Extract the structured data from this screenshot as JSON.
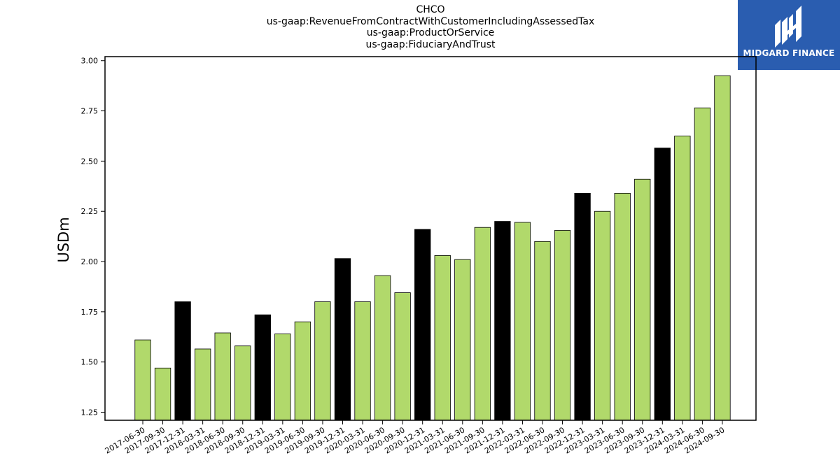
{
  "title_lines": [
    "CHCO",
    "us-gaap:RevenueFromContractWithCustomerIncludingAssessedTax",
    "us-gaap:ProductOrService",
    "us-gaap:FiduciaryAndTrust"
  ],
  "brand": {
    "name": "MIDGARD FINANCE",
    "color": "#2a5db0"
  },
  "colors": {
    "quarter": "#b1d96b",
    "year_end": "#000000"
  },
  "chart_data": {
    "type": "bar",
    "title": "CHCO",
    "subtitle_lines": [
      "us-gaap:RevenueFromContractWithCustomerIncludingAssessedTax",
      "us-gaap:ProductOrService",
      "us-gaap:FiduciaryAndTrust"
    ],
    "xlabel": "",
    "ylabel": "USDm",
    "ylim": [
      1.21,
      3.02
    ],
    "yticks": [
      "1.25",
      "1.50",
      "1.75",
      "2.00",
      "2.25",
      "2.50",
      "2.75",
      "3.00"
    ],
    "grid": false,
    "categories": [
      "2017-06-30",
      "2017-09-30",
      "2017-12-31",
      "2018-03-31",
      "2018-06-30",
      "2018-09-30",
      "2018-12-31",
      "2019-03-31",
      "2019-06-30",
      "2019-09-30",
      "2019-12-31",
      "2020-03-31",
      "2020-06-30",
      "2020-09-30",
      "2020-12-31",
      "2021-03-31",
      "2021-06-30",
      "2021-09-30",
      "2021-12-31",
      "2022-03-31",
      "2022-06-30",
      "2022-09-30",
      "2022-12-31",
      "2023-03-31",
      "2023-06-30",
      "2023-09-30",
      "2023-12-31",
      "2024-03-31",
      "2024-06-30",
      "2024-09-30"
    ],
    "values": [
      1.61,
      1.47,
      1.8,
      1.565,
      1.645,
      1.58,
      1.735,
      1.64,
      1.7,
      1.8,
      2.015,
      1.8,
      1.93,
      1.845,
      2.16,
      2.03,
      2.01,
      2.17,
      2.2,
      2.195,
      2.1,
      2.155,
      2.34,
      2.25,
      2.34,
      2.41,
      2.565,
      2.625,
      2.765,
      2.925
    ]
  }
}
